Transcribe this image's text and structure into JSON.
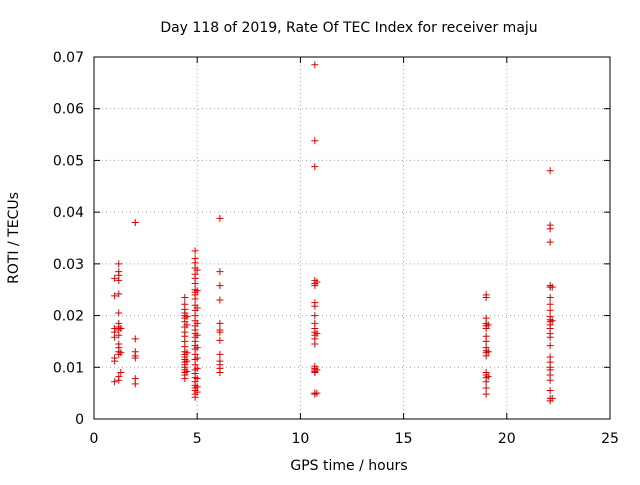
{
  "chart_data": {
    "type": "scatter",
    "title": "Day 118 of 2019, Rate Of TEC Index for receiver maju",
    "xlabel": "GPS time / hours",
    "ylabel": "ROTI / TECUs",
    "xlim": [
      0,
      25
    ],
    "ylim": [
      0,
      0.07
    ],
    "xticks": [
      0,
      5,
      10,
      15,
      20,
      25
    ],
    "xtick_labels": [
      "0",
      "5",
      "10",
      "15",
      "20",
      "25"
    ],
    "yticks": [
      0,
      0.01,
      0.02,
      0.03,
      0.04,
      0.05,
      0.06,
      0.07
    ],
    "ytick_labels": [
      "0",
      "0.01",
      "0.02",
      "0.03",
      "0.04",
      "0.05",
      "0.06",
      "0.07"
    ],
    "grid": true,
    "marker": "plus",
    "color": "#dd0000",
    "series": [
      {
        "name": "ROTI",
        "points": [
          [
            1.0,
            0.0072
          ],
          [
            1.0,
            0.0112
          ],
          [
            1.0,
            0.0118
          ],
          [
            1.0,
            0.0158
          ],
          [
            1.0,
            0.0168
          ],
          [
            1.0,
            0.0175
          ],
          [
            1.0,
            0.0238
          ],
          [
            1.0,
            0.0272
          ],
          [
            1.2,
            0.0075
          ],
          [
            1.2,
            0.0082
          ],
          [
            1.2,
            0.0125
          ],
          [
            1.2,
            0.013
          ],
          [
            1.2,
            0.0138
          ],
          [
            1.2,
            0.0145
          ],
          [
            1.2,
            0.0162
          ],
          [
            1.2,
            0.0172
          ],
          [
            1.2,
            0.0178
          ],
          [
            1.2,
            0.0185
          ],
          [
            1.2,
            0.0205
          ],
          [
            1.2,
            0.0242
          ],
          [
            1.2,
            0.0268
          ],
          [
            1.2,
            0.0278
          ],
          [
            1.2,
            0.0285
          ],
          [
            1.2,
            0.03
          ],
          [
            1.3,
            0.0128
          ],
          [
            1.3,
            0.0175
          ],
          [
            1.3,
            0.009
          ],
          [
            2.0,
            0.0068
          ],
          [
            2.0,
            0.0078
          ],
          [
            2.0,
            0.0118
          ],
          [
            2.0,
            0.0122
          ],
          [
            2.0,
            0.013
          ],
          [
            2.0,
            0.0155
          ],
          [
            2.0,
            0.038
          ],
          [
            4.4,
            0.0078
          ],
          [
            4.4,
            0.0085
          ],
          [
            4.4,
            0.009
          ],
          [
            4.4,
            0.0095
          ],
          [
            4.4,
            0.01
          ],
          [
            4.4,
            0.0105
          ],
          [
            4.4,
            0.011
          ],
          [
            4.4,
            0.0115
          ],
          [
            4.4,
            0.012
          ],
          [
            4.4,
            0.0125
          ],
          [
            4.4,
            0.013
          ],
          [
            4.4,
            0.014
          ],
          [
            4.4,
            0.015
          ],
          [
            4.4,
            0.016
          ],
          [
            4.4,
            0.0168
          ],
          [
            4.4,
            0.0178
          ],
          [
            4.4,
            0.0188
          ],
          [
            4.4,
            0.0195
          ],
          [
            4.4,
            0.02
          ],
          [
            4.4,
            0.0205
          ],
          [
            4.4,
            0.0212
          ],
          [
            4.4,
            0.0222
          ],
          [
            4.4,
            0.0235
          ],
          [
            4.5,
            0.0092
          ],
          [
            4.5,
            0.0112
          ],
          [
            4.5,
            0.0128
          ],
          [
            4.5,
            0.0182
          ],
          [
            4.5,
            0.0198
          ],
          [
            4.9,
            0.0042
          ],
          [
            4.9,
            0.0048
          ],
          [
            4.9,
            0.0055
          ],
          [
            4.9,
            0.006
          ],
          [
            4.9,
            0.0065
          ],
          [
            4.9,
            0.0072
          ],
          [
            4.9,
            0.008
          ],
          [
            4.9,
            0.0088
          ],
          [
            4.9,
            0.0095
          ],
          [
            4.9,
            0.0105
          ],
          [
            4.9,
            0.0115
          ],
          [
            4.9,
            0.0125
          ],
          [
            4.9,
            0.0135
          ],
          [
            4.9,
            0.0142
          ],
          [
            4.9,
            0.015
          ],
          [
            4.9,
            0.0158
          ],
          [
            4.9,
            0.0165
          ],
          [
            4.9,
            0.0172
          ],
          [
            4.9,
            0.018
          ],
          [
            4.9,
            0.019
          ],
          [
            4.9,
            0.02
          ],
          [
            4.9,
            0.021
          ],
          [
            4.9,
            0.022
          ],
          [
            4.9,
            0.0232
          ],
          [
            4.9,
            0.024
          ],
          [
            4.9,
            0.0245
          ],
          [
            4.9,
            0.025
          ],
          [
            4.9,
            0.0262
          ],
          [
            4.9,
            0.0272
          ],
          [
            4.9,
            0.028
          ],
          [
            4.9,
            0.0292
          ],
          [
            4.9,
            0.0302
          ],
          [
            4.9,
            0.031
          ],
          [
            4.9,
            0.0325
          ],
          [
            5.0,
            0.0052
          ],
          [
            5.0,
            0.0062
          ],
          [
            5.0,
            0.0078
          ],
          [
            5.0,
            0.0098
          ],
          [
            5.0,
            0.0118
          ],
          [
            5.0,
            0.0138
          ],
          [
            5.0,
            0.0162
          ],
          [
            5.0,
            0.0185
          ],
          [
            5.0,
            0.0215
          ],
          [
            5.0,
            0.0248
          ],
          [
            5.0,
            0.0288
          ],
          [
            6.1,
            0.009
          ],
          [
            6.1,
            0.0098
          ],
          [
            6.1,
            0.0105
          ],
          [
            6.1,
            0.0112
          ],
          [
            6.1,
            0.0125
          ],
          [
            6.1,
            0.0152
          ],
          [
            6.1,
            0.0168
          ],
          [
            6.1,
            0.0172
          ],
          [
            6.1,
            0.0185
          ],
          [
            6.1,
            0.023
          ],
          [
            6.1,
            0.0258
          ],
          [
            6.1,
            0.0285
          ],
          [
            6.1,
            0.0388
          ],
          [
            10.7,
            0.0048
          ],
          [
            10.7,
            0.005
          ],
          [
            10.7,
            0.009
          ],
          [
            10.7,
            0.0092
          ],
          [
            10.7,
            0.0095
          ],
          [
            10.7,
            0.0098
          ],
          [
            10.7,
            0.0102
          ],
          [
            10.7,
            0.0145
          ],
          [
            10.7,
            0.0155
          ],
          [
            10.7,
            0.0162
          ],
          [
            10.7,
            0.0168
          ],
          [
            10.7,
            0.0175
          ],
          [
            10.7,
            0.0185
          ],
          [
            10.7,
            0.02
          ],
          [
            10.7,
            0.0218
          ],
          [
            10.7,
            0.0225
          ],
          [
            10.7,
            0.0258
          ],
          [
            10.7,
            0.0262
          ],
          [
            10.7,
            0.0268
          ],
          [
            10.7,
            0.0488
          ],
          [
            10.7,
            0.0538
          ],
          [
            10.7,
            0.0685
          ],
          [
            10.8,
            0.005
          ],
          [
            10.8,
            0.0095
          ],
          [
            10.8,
            0.0165
          ],
          [
            10.8,
            0.0265
          ],
          [
            19.0,
            0.0048
          ],
          [
            19.0,
            0.006
          ],
          [
            19.0,
            0.0072
          ],
          [
            19.0,
            0.008
          ],
          [
            19.0,
            0.0085
          ],
          [
            19.0,
            0.009
          ],
          [
            19.0,
            0.0122
          ],
          [
            19.0,
            0.0128
          ],
          [
            19.0,
            0.0132
          ],
          [
            19.0,
            0.0138
          ],
          [
            19.0,
            0.015
          ],
          [
            19.0,
            0.016
          ],
          [
            19.0,
            0.0175
          ],
          [
            19.0,
            0.018
          ],
          [
            19.0,
            0.0185
          ],
          [
            19.0,
            0.0195
          ],
          [
            19.0,
            0.0235
          ],
          [
            19.0,
            0.024
          ],
          [
            19.1,
            0.0082
          ],
          [
            19.1,
            0.013
          ],
          [
            19.1,
            0.0182
          ],
          [
            22.1,
            0.0035
          ],
          [
            22.1,
            0.004
          ],
          [
            22.1,
            0.0055
          ],
          [
            22.1,
            0.0075
          ],
          [
            22.1,
            0.0085
          ],
          [
            22.1,
            0.0095
          ],
          [
            22.1,
            0.01
          ],
          [
            22.1,
            0.011
          ],
          [
            22.1,
            0.012
          ],
          [
            22.1,
            0.0142
          ],
          [
            22.1,
            0.0158
          ],
          [
            22.1,
            0.0165
          ],
          [
            22.1,
            0.0175
          ],
          [
            22.1,
            0.0182
          ],
          [
            22.1,
            0.0188
          ],
          [
            22.1,
            0.0192
          ],
          [
            22.1,
            0.0198
          ],
          [
            22.1,
            0.021
          ],
          [
            22.1,
            0.0222
          ],
          [
            22.1,
            0.0235
          ],
          [
            22.1,
            0.0255
          ],
          [
            22.1,
            0.0258
          ],
          [
            22.1,
            0.0342
          ],
          [
            22.1,
            0.0368
          ],
          [
            22.1,
            0.0375
          ],
          [
            22.1,
            0.048
          ],
          [
            22.2,
            0.004
          ],
          [
            22.2,
            0.019
          ],
          [
            22.2,
            0.0255
          ]
        ]
      }
    ]
  }
}
